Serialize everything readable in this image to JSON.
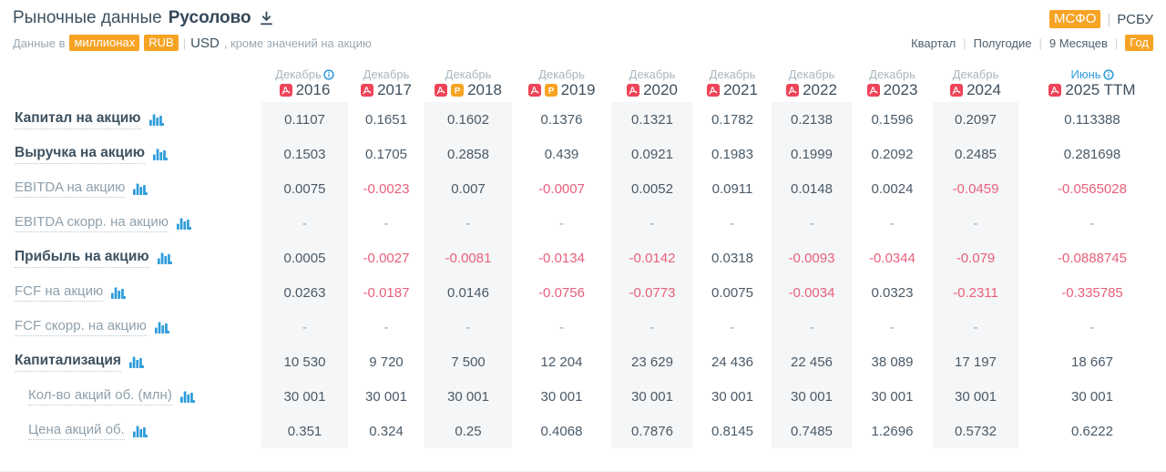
{
  "header": {
    "title_prefix": "Рыночные данные",
    "company": "Русолово",
    "data_note": {
      "prefix": "Данные в",
      "unit_chip": "миллионах",
      "currency_active": "RUB",
      "separator": "|",
      "currency_alt": "USD",
      "suffix": ", кроме значений на акцию"
    },
    "standards": {
      "active": "МСФО",
      "separator": "|",
      "inactive": "РСБУ"
    },
    "periods": [
      "Квартал",
      "Полугодие",
      "9 Месяцев",
      "Год"
    ],
    "active_period": "Год"
  },
  "table": {
    "columns": [
      {
        "month": "Декабрь",
        "year": "2016",
        "info": true,
        "month_highlight": false,
        "icons": [
          "pdf"
        ]
      },
      {
        "month": "Декабрь",
        "year": "2017",
        "info": false,
        "month_highlight": false,
        "icons": [
          "pdf"
        ]
      },
      {
        "month": "Декабрь",
        "year": "2018",
        "info": false,
        "month_highlight": false,
        "icons": [
          "pdf",
          "p"
        ]
      },
      {
        "month": "Декабрь",
        "year": "2019",
        "info": false,
        "month_highlight": false,
        "icons": [
          "pdf",
          "p"
        ]
      },
      {
        "month": "Декабрь",
        "year": "2020",
        "info": false,
        "month_highlight": false,
        "icons": [
          "pdf"
        ]
      },
      {
        "month": "Декабрь",
        "year": "2021",
        "info": false,
        "month_highlight": false,
        "icons": [
          "pdf"
        ]
      },
      {
        "month": "Декабрь",
        "year": "2022",
        "info": false,
        "month_highlight": false,
        "icons": [
          "pdf"
        ]
      },
      {
        "month": "Декабрь",
        "year": "2023",
        "info": false,
        "month_highlight": false,
        "icons": [
          "pdf"
        ]
      },
      {
        "month": "Декабрь",
        "year": "2024",
        "info": false,
        "month_highlight": false,
        "icons": [
          "pdf"
        ]
      },
      {
        "month": "Июнь",
        "year": "2025 TTM",
        "info": true,
        "month_highlight": true,
        "icons": [
          "pdf"
        ]
      }
    ],
    "rows": [
      {
        "label": "Капитал на акцию",
        "style": "bold",
        "values": [
          "0.1107",
          "0.1651",
          "0.1602",
          "0.1376",
          "0.1321",
          "0.1782",
          "0.2138",
          "0.1596",
          "0.2097",
          "0.113388"
        ]
      },
      {
        "label": "Выручка на акцию",
        "style": "bold",
        "values": [
          "0.1503",
          "0.1705",
          "0.2858",
          "0.439",
          "0.0921",
          "0.1983",
          "0.1999",
          "0.2092",
          "0.2485",
          "0.281698"
        ]
      },
      {
        "label": "EBITDA на акцию",
        "style": "normal",
        "values": [
          "0.0075",
          "-0.0023",
          "0.007",
          "-0.0007",
          "0.0052",
          "0.0911",
          "0.0148",
          "0.0024",
          "-0.0459",
          "-0.0565028"
        ]
      },
      {
        "label": "EBITDA скорр. на акцию",
        "style": "normal",
        "values": [
          "-",
          "-",
          "-",
          "-",
          "-",
          "-",
          "-",
          "-",
          "-",
          "-"
        ]
      },
      {
        "label": "Прибыль на акцию",
        "style": "bold",
        "values": [
          "0.0005",
          "-0.0027",
          "-0.0081",
          "-0.0134",
          "-0.0142",
          "0.0318",
          "-0.0093",
          "-0.0344",
          "-0.079",
          "-0.0888745"
        ]
      },
      {
        "label": "FCF на акцию",
        "style": "normal",
        "values": [
          "0.0263",
          "-0.0187",
          "0.0146",
          "-0.0756",
          "-0.0773",
          "0.0075",
          "-0.0034",
          "0.0323",
          "-0.2311",
          "-0.335785"
        ]
      },
      {
        "label": "FCF скорр. на акцию",
        "style": "normal",
        "values": [
          "-",
          "-",
          "-",
          "-",
          "-",
          "-",
          "-",
          "-",
          "-",
          "-"
        ]
      },
      {
        "label": "Капитализация",
        "style": "bold",
        "values": [
          "10 530",
          "9 720",
          "7 500",
          "12 204",
          "23 629",
          "24 436",
          "22 456",
          "38 089",
          "17 197",
          "18 667"
        ]
      },
      {
        "label": "Кол-во акций об. (млн)",
        "style": "sub",
        "values": [
          "30 001",
          "30 001",
          "30 001",
          "30 001",
          "30 001",
          "30 001",
          "30 001",
          "30 001",
          "30 001",
          "30 001"
        ]
      },
      {
        "label": "Цена акций об.",
        "style": "sub",
        "values": [
          "0.351",
          "0.324",
          "0.25",
          "0.4068",
          "0.7876",
          "0.8145",
          "0.7485",
          "1.2696",
          "0.5732",
          "0.6222"
        ]
      }
    ]
  },
  "colors": {
    "accent_orange": "#F7A324",
    "accent_blue": "#2D9CDB",
    "negative_red": "#E8607A",
    "pdf_icon_red": "#EE4458",
    "dark_text": "#3D5160",
    "stripe_gray": "#F5F6F7"
  },
  "icons": {
    "download": "download-icon",
    "info": "info-icon",
    "pdf": "pdf-report-icon",
    "p": "presentation-icon",
    "chart": "bar-chart-icon"
  }
}
